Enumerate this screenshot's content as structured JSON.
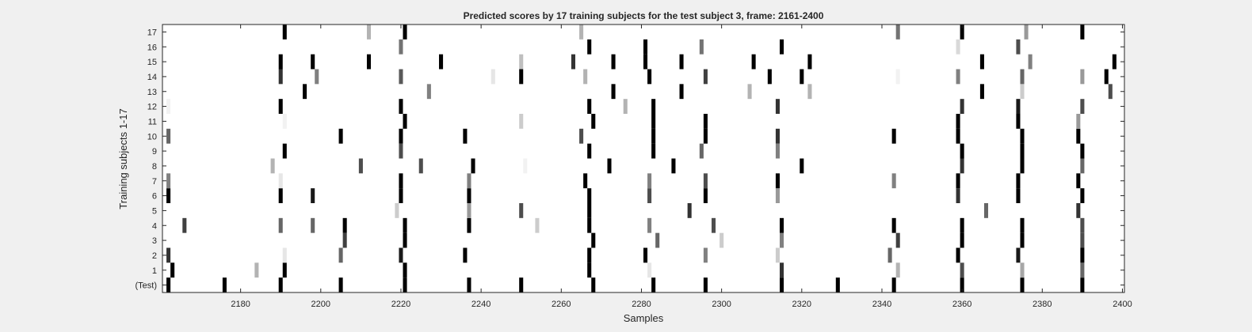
{
  "chart_data": {
    "type": "heatmap",
    "title": "Predicted scores by 17 training subjects for the test subject 3, frame: 2161-2400",
    "xlabel": "Samples",
    "ylabel": "Training subjects 1-17",
    "xlim": [
      2161,
      2400
    ],
    "x_ticks": [
      "2180",
      "2200",
      "2220",
      "2240",
      "2260",
      "2280",
      "2300",
      "2320",
      "2340",
      "2360",
      "2380",
      "2400"
    ],
    "y_ticks": [
      "(Test)",
      "1",
      "2",
      "3",
      "4",
      "5",
      "6",
      "7",
      "8",
      "9",
      "10",
      "11",
      "12",
      "13",
      "14",
      "15",
      "16",
      "17"
    ],
    "colormap": "white-to-black (higher score darker)",
    "rows": [
      {
        "row": "(Test)",
        "marks": [
          [
            2162,
            1
          ],
          [
            2176,
            1
          ],
          [
            2190,
            1
          ],
          [
            2205,
            1
          ],
          [
            2221,
            1
          ],
          [
            2237,
            1
          ],
          [
            2250,
            1
          ],
          [
            2268,
            1
          ],
          [
            2283,
            1
          ],
          [
            2296,
            1
          ],
          [
            2315,
            1
          ],
          [
            2329,
            1
          ],
          [
            2343,
            1
          ],
          [
            2360,
            1
          ],
          [
            2375,
            1
          ],
          [
            2390,
            1
          ]
        ]
      },
      {
        "row": "1",
        "marks": [
          [
            2163,
            1
          ],
          [
            2184,
            0.3
          ],
          [
            2191,
            1
          ],
          [
            2221,
            1
          ],
          [
            2267,
            1
          ],
          [
            2282,
            0.1
          ],
          [
            2315,
            0.8
          ],
          [
            2344,
            0.3
          ],
          [
            2360,
            0.7
          ],
          [
            2375,
            0.35
          ],
          [
            2390,
            0.6
          ]
        ]
      },
      {
        "row": "2",
        "marks": [
          [
            2162,
            0.8
          ],
          [
            2191,
            0.1
          ],
          [
            2205,
            0.6
          ],
          [
            2220,
            0.9
          ],
          [
            2236,
            1
          ],
          [
            2267,
            1
          ],
          [
            2281,
            1
          ],
          [
            2296,
            0.5
          ],
          [
            2314,
            0.2
          ],
          [
            2342,
            0.6
          ],
          [
            2359,
            1
          ],
          [
            2374,
            0.9
          ],
          [
            2390,
            1
          ]
        ]
      },
      {
        "row": "3",
        "marks": [
          [
            2206,
            0.75
          ],
          [
            2221,
            1
          ],
          [
            2268,
            1
          ],
          [
            2284,
            0.6
          ],
          [
            2300,
            0.2
          ],
          [
            2315,
            0.5
          ],
          [
            2344,
            0.75
          ],
          [
            2360,
            1
          ],
          [
            2375,
            1
          ],
          [
            2390,
            0.7
          ]
        ]
      },
      {
        "row": "4",
        "marks": [
          [
            2166,
            0.75
          ],
          [
            2190,
            0.6
          ],
          [
            2198,
            0.6
          ],
          [
            2206,
            1
          ],
          [
            2221,
            1
          ],
          [
            2237,
            1
          ],
          [
            2254,
            0.2
          ],
          [
            2267,
            1
          ],
          [
            2282,
            0.5
          ],
          [
            2298,
            0.7
          ],
          [
            2315,
            1
          ],
          [
            2343,
            1
          ],
          [
            2360,
            1
          ],
          [
            2375,
            1
          ],
          [
            2390,
            0.7
          ]
        ]
      },
      {
        "row": "5",
        "marks": [
          [
            2219,
            0.2
          ],
          [
            2237,
            0.4
          ],
          [
            2250,
            0.7
          ],
          [
            2267,
            1
          ],
          [
            2292,
            0.8
          ],
          [
            2366,
            0.6
          ],
          [
            2389,
            0.8
          ]
        ]
      },
      {
        "row": "6",
        "marks": [
          [
            2162,
            1
          ],
          [
            2190,
            1
          ],
          [
            2198,
            0.9
          ],
          [
            2220,
            1
          ],
          [
            2237,
            1
          ],
          [
            2267,
            1
          ],
          [
            2282,
            0.7
          ],
          [
            2296,
            1
          ],
          [
            2314,
            0.4
          ],
          [
            2359,
            0.8
          ],
          [
            2374,
            1
          ],
          [
            2390,
            1
          ]
        ]
      },
      {
        "row": "7",
        "marks": [
          [
            2162,
            0.5
          ],
          [
            2190,
            0.1
          ],
          [
            2220,
            1
          ],
          [
            2237,
            0.5
          ],
          [
            2266,
            1
          ],
          [
            2282,
            0.5
          ],
          [
            2296,
            0.7
          ],
          [
            2314,
            1
          ],
          [
            2343,
            0.5
          ],
          [
            2359,
            1
          ],
          [
            2374,
            1
          ],
          [
            2389,
            1
          ]
        ]
      },
      {
        "row": "8",
        "marks": [
          [
            2188,
            0.3
          ],
          [
            2210,
            0.7
          ],
          [
            2225,
            0.7
          ],
          [
            2238,
            1
          ],
          [
            2251,
            0.05
          ],
          [
            2272,
            1
          ],
          [
            2288,
            1
          ],
          [
            2320,
            1
          ],
          [
            2360,
            0.8
          ],
          [
            2375,
            1
          ],
          [
            2390,
            0.6
          ]
        ]
      },
      {
        "row": "9",
        "marks": [
          [
            2191,
            1
          ],
          [
            2220,
            0.7
          ],
          [
            2267,
            1
          ],
          [
            2283,
            1
          ],
          [
            2295,
            0.6
          ],
          [
            2314,
            0.5
          ],
          [
            2360,
            1
          ],
          [
            2375,
            1
          ],
          [
            2390,
            1
          ]
        ]
      },
      {
        "row": "10",
        "marks": [
          [
            2162,
            0.6
          ],
          [
            2205,
            1
          ],
          [
            2220,
            1
          ],
          [
            2236,
            1
          ],
          [
            2265,
            0.7
          ],
          [
            2283,
            1
          ],
          [
            2296,
            1
          ],
          [
            2314,
            0.8
          ],
          [
            2343,
            1
          ],
          [
            2359,
            1
          ],
          [
            2375,
            1
          ],
          [
            2389,
            1
          ]
        ]
      },
      {
        "row": "11",
        "marks": [
          [
            2191,
            0.05
          ],
          [
            2221,
            1
          ],
          [
            2250,
            0.2
          ],
          [
            2268,
            1
          ],
          [
            2283,
            1
          ],
          [
            2296,
            1
          ],
          [
            2359,
            1
          ],
          [
            2374,
            1
          ],
          [
            2389,
            0.4
          ]
        ]
      },
      {
        "row": "12",
        "marks": [
          [
            2162,
            0.05
          ],
          [
            2190,
            1
          ],
          [
            2220,
            1
          ],
          [
            2267,
            1
          ],
          [
            2276,
            0.3
          ],
          [
            2283,
            1
          ],
          [
            2314,
            0.8
          ],
          [
            2360,
            0.8
          ],
          [
            2374,
            0.9
          ],
          [
            2390,
            0.7
          ]
        ]
      },
      {
        "row": "13",
        "marks": [
          [
            2196,
            1
          ],
          [
            2227,
            0.5
          ],
          [
            2273,
            1
          ],
          [
            2290,
            1
          ],
          [
            2307,
            0.3
          ],
          [
            2322,
            0.3
          ],
          [
            2365,
            1
          ],
          [
            2375,
            0.2
          ],
          [
            2397,
            0.7
          ]
        ]
      },
      {
        "row": "14",
        "marks": [
          [
            2190,
            0.8
          ],
          [
            2199,
            0.5
          ],
          [
            2220,
            0.65
          ],
          [
            2243,
            0.1
          ],
          [
            2250,
            1
          ],
          [
            2266,
            0.3
          ],
          [
            2282,
            1
          ],
          [
            2296,
            0.75
          ],
          [
            2312,
            1
          ],
          [
            2320,
            1
          ],
          [
            2344,
            0.05
          ],
          [
            2359,
            0.5
          ],
          [
            2375,
            0.6
          ],
          [
            2390,
            0.4
          ],
          [
            2396,
            1
          ]
        ]
      },
      {
        "row": "15",
        "marks": [
          [
            2190,
            1
          ],
          [
            2198,
            1
          ],
          [
            2212,
            1
          ],
          [
            2230,
            1
          ],
          [
            2250,
            0.25
          ],
          [
            2263,
            0.8
          ],
          [
            2273,
            1
          ],
          [
            2281,
            1
          ],
          [
            2290,
            1
          ],
          [
            2308,
            1
          ],
          [
            2322,
            1
          ],
          [
            2365,
            1
          ],
          [
            2377,
            0.5
          ],
          [
            2398,
            1
          ]
        ]
      },
      {
        "row": "16",
        "marks": [
          [
            2220,
            0.55
          ],
          [
            2267,
            1
          ],
          [
            2281,
            1
          ],
          [
            2295,
            0.55
          ],
          [
            2315,
            1
          ],
          [
            2359,
            0.15
          ],
          [
            2374,
            0.7
          ]
        ]
      },
      {
        "row": "17",
        "marks": [
          [
            2191,
            1
          ],
          [
            2212,
            0.3
          ],
          [
            2221,
            1
          ],
          [
            2265,
            0.3
          ],
          [
            2344,
            0.55
          ],
          [
            2360,
            1
          ],
          [
            2376,
            0.4
          ],
          [
            2390,
            1
          ]
        ]
      }
    ]
  }
}
